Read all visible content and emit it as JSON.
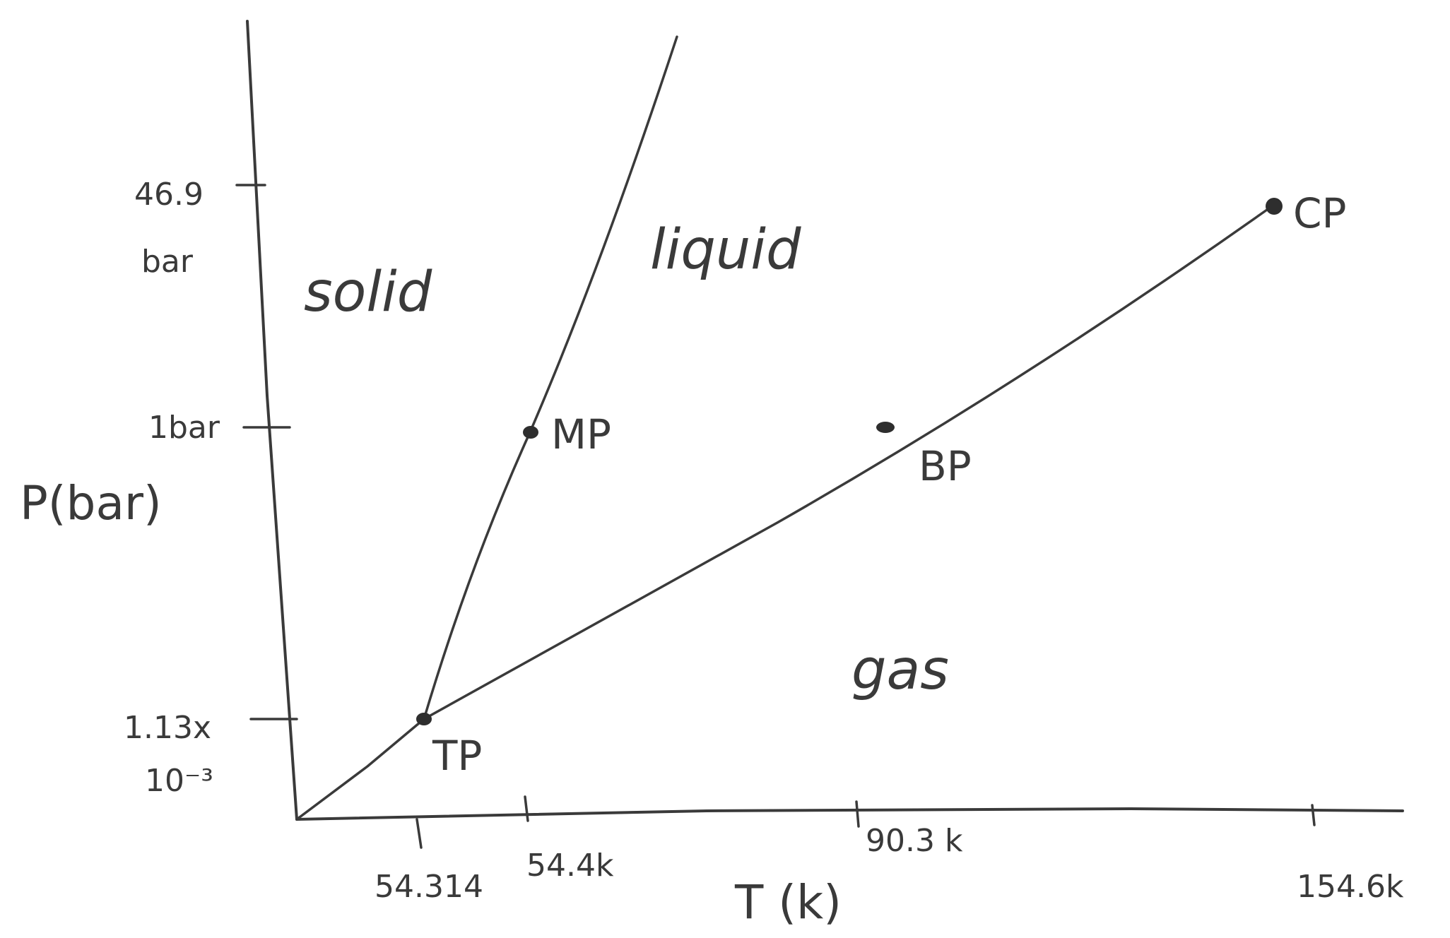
{
  "diagram": {
    "x_axis_title": "T (k)",
    "y_axis_title": "P(bar)",
    "x_ticks": [
      "54.314",
      "54.4k",
      "90.3 k",
      "154.6k"
    ],
    "y_ticks": [
      {
        "line1": "46.9",
        "line2": "bar"
      },
      {
        "line1": "1bar",
        "line2": ""
      },
      {
        "line1": "1.13x",
        "line2": "10⁻³"
      }
    ],
    "regions": {
      "solid": "solid",
      "liquid": "liquid",
      "gas": "gas"
    },
    "points": {
      "triple": "TP",
      "melting": "MP",
      "boiling": "BP",
      "critical": "CP"
    }
  }
}
